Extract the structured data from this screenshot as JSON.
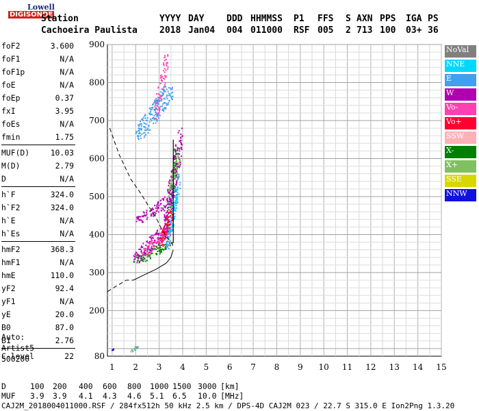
{
  "logo": {
    "line1": "Lowell",
    "line2": "DIGISONDE"
  },
  "header": {
    "row1": [
      "Station",
      "YYYY",
      "DAY",
      "DDD",
      "HHMMSS",
      "P1",
      "FFS",
      "S",
      "AXN",
      "PPS",
      "IGA",
      "PS"
    ],
    "row2": [
      "Cachoeira Paulista",
      "2018",
      "Jan04",
      "004",
      "011000",
      "RSF",
      "005",
      "2",
      "713",
      "100",
      "03+",
      "36"
    ]
  },
  "params": [
    {
      "key": "foF2",
      "value": "3.600"
    },
    {
      "key": "foF1",
      "value": "N/A"
    },
    {
      "key": "foF1p",
      "value": "N/A"
    },
    {
      "key": "foE",
      "value": "N/A"
    },
    {
      "key": "foEp",
      "value": "0.37"
    },
    {
      "key": "fxI",
      "value": "3.95"
    },
    {
      "key": "foEs",
      "value": "N/A"
    },
    {
      "key": "fmin",
      "value": "1.75"
    },
    {
      "key": "MUF(D)",
      "value": "10.03"
    },
    {
      "key": "M(D)",
      "value": "2.79"
    },
    {
      "key": "D",
      "value": "N/A"
    },
    {
      "key": "h`F",
      "value": "324.0"
    },
    {
      "key": "h`F2",
      "value": "324.0"
    },
    {
      "key": "h`E",
      "value": "N/A"
    },
    {
      "key": "h`Es",
      "value": "N/A"
    },
    {
      "key": "hmF2",
      "value": "368.3"
    },
    {
      "key": "hmF1",
      "value": "N/A"
    },
    {
      "key": "hmE",
      "value": "110.0"
    },
    {
      "key": "yF2",
      "value": "92.4"
    },
    {
      "key": "yF1",
      "value": "N/A"
    },
    {
      "key": "yE",
      "value": "20.0"
    },
    {
      "key": "B0",
      "value": "87.0"
    },
    {
      "key": "B1",
      "value": "2.76"
    },
    {
      "key": "C-level",
      "value": "22"
    }
  ],
  "auto": {
    "line1": "Auto:",
    "line2": "Artist5",
    "line3": "500200"
  },
  "legend": [
    {
      "label": "NoVal",
      "color": "#808080"
    },
    {
      "label": "NNE",
      "color": "#00d8ff"
    },
    {
      "label": "E",
      "color": "#40a0f0"
    },
    {
      "label": "W",
      "color": "#b000b0"
    },
    {
      "label": "Vo-",
      "color": "#ff40b0"
    },
    {
      "label": "Vo+",
      "color": "#ff0030"
    },
    {
      "label": "SSW",
      "color": "#ffb0b8"
    },
    {
      "label": "X-",
      "color": "#008000"
    },
    {
      "label": "X+",
      "color": "#80c060"
    },
    {
      "label": "SSE",
      "color": "#d8d800"
    },
    {
      "label": "NNW",
      "color": "#1010e0"
    }
  ],
  "bottom": {
    "d_label": "D",
    "d_values": [
      "100",
      "200",
      "400",
      "600",
      "800",
      "1000",
      "1500",
      "3000",
      "[km]"
    ],
    "muf_label": "MUF",
    "muf_values": [
      "3.9",
      "3.9",
      "4.1",
      "4.3",
      "4.6",
      "5.1",
      "6.5",
      "10.0",
      "[MHz]"
    ]
  },
  "footer": "CAJ2M_2018004011000.RSF / 284fx512h 50 kHz 2.5 km / DPS-4D CAJ2M 023 / 22.7 S 315.0 E Ion2Png 1.3.20",
  "chart_data": {
    "type": "scatter",
    "x_ticks": [
      "1",
      "2",
      "3",
      "4",
      "5",
      "6",
      "7",
      "8",
      "9",
      "10",
      "11",
      "12",
      "13",
      "14",
      "15"
    ],
    "y_ticks": [
      "80",
      "200",
      "300",
      "400",
      "500",
      "600",
      "700",
      "800",
      "900"
    ],
    "xlim": [
      0.8,
      15
    ],
    "ylim": [
      80,
      900
    ],
    "grid": true,
    "series": [
      {
        "name": "X-",
        "color": "#008000",
        "clusters": [
          {
            "fmin": 1.9,
            "fmax": 3.6,
            "hmin": 325,
            "hmax": 380
          },
          {
            "fmin": 3.3,
            "fmax": 3.8,
            "hmin": 380,
            "hmax": 640
          }
        ]
      },
      {
        "name": "W",
        "color": "#b000b0",
        "clusters": [
          {
            "fmin": 1.8,
            "fmax": 3.4,
            "hmin": 325,
            "hmax": 420
          },
          {
            "fmin": 2.0,
            "fmax": 3.6,
            "hmin": 430,
            "hmax": 500
          },
          {
            "fmin": 3.2,
            "fmax": 4.0,
            "hmin": 400,
            "hmax": 680
          }
        ]
      },
      {
        "name": "Vo-",
        "color": "#ff40b0",
        "clusters": [
          {
            "fmin": 2.2,
            "fmax": 3.5,
            "hmin": 340,
            "hmax": 420
          },
          {
            "fmin": 2.8,
            "fmax": 3.4,
            "hmin": 700,
            "hmax": 880
          }
        ]
      },
      {
        "name": "E",
        "color": "#40a0f0",
        "clusters": [
          {
            "fmin": 3.3,
            "fmax": 3.9,
            "hmin": 360,
            "hmax": 560
          },
          {
            "fmin": 2.0,
            "fmax": 3.6,
            "hmin": 650,
            "hmax": 790
          },
          {
            "fmin": 1.8,
            "fmax": 2.1,
            "hmin": 90,
            "hmax": 105
          }
        ]
      },
      {
        "name": "NNE",
        "color": "#00d8ff",
        "clusters": [
          {
            "fmin": 3.4,
            "fmax": 3.8,
            "hmin": 380,
            "hmax": 520
          }
        ]
      },
      {
        "name": "X+",
        "color": "#80c060",
        "clusters": [
          {
            "fmin": 3.4,
            "fmax": 3.9,
            "hmin": 500,
            "hmax": 620
          },
          {
            "fmin": 1.8,
            "fmax": 2.1,
            "hmin": 90,
            "hmax": 110
          }
        ]
      },
      {
        "name": "Vo+",
        "color": "#ff0030",
        "clusters": [
          {
            "fmin": 3.0,
            "fmax": 3.6,
            "hmin": 360,
            "hmax": 470
          }
        ]
      },
      {
        "name": "NNW",
        "color": "#1010e0",
        "clusters": [
          {
            "fmin": 1.0,
            "fmax": 1.1,
            "hmin": 95,
            "hmax": 100
          }
        ]
      }
    ],
    "profile": [
      [
        0.9,
        680
      ],
      [
        1.3,
        610
      ],
      [
        1.8,
        545
      ],
      [
        2.2,
        510
      ],
      [
        2.6,
        470
      ],
      [
        2.9,
        440
      ],
      [
        3.1,
        415
      ],
      [
        3.3,
        395
      ],
      [
        3.5,
        380
      ],
      [
        3.6,
        370
      ]
    ],
    "true_height": [
      [
        1.9,
        280
      ],
      [
        2.4,
        295
      ],
      [
        2.9,
        310
      ],
      [
        3.3,
        325
      ],
      [
        3.5,
        340
      ],
      [
        3.6,
        360
      ]
    ],
    "low_profile": [
      [
        0.8,
        250
      ],
      [
        1.2,
        265
      ],
      [
        1.6,
        280
      ],
      [
        1.9,
        280
      ]
    ],
    "vertical_line_freq": 3.6,
    "vertical_line_range": [
      380,
      650
    ]
  }
}
